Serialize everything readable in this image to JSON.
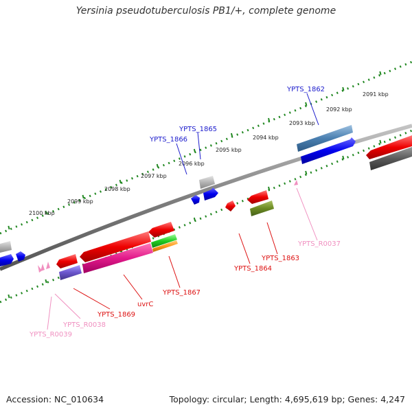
{
  "map": {
    "title": "Yersinia pseudotuberculosis PB1/+, complete genome",
    "accession_text": "Accession: NC_010634",
    "summary_text": "Topology: circular; Length: 4,695,619 bp; Genes: 4,247",
    "ruler_labels": [
      "2091 kbp",
      "2092 kbp",
      "2093 kbp",
      "2094 kbp",
      "2095 kbp",
      "2096 kbp",
      "2097 kbp",
      "2098 kbp",
      "2099 kbp",
      "2100 kbp"
    ],
    "gene_labels": [
      {
        "text": "YPTS_1862",
        "color": "#1a1acc"
      },
      {
        "text": "YPTS_1865",
        "color": "#1a1acc"
      },
      {
        "text": "YPTS_1866",
        "color": "#1a1acc"
      },
      {
        "text": "YPTS_R0037",
        "color": "#f090c0"
      },
      {
        "text": "YPTS_1863",
        "color": "#dd1111"
      },
      {
        "text": "YPTS_1864",
        "color": "#dd1111"
      },
      {
        "text": "YPTS_1867",
        "color": "#dd1111"
      },
      {
        "text": "uvrC",
        "color": "#dd1111"
      },
      {
        "text": "YPTS_1869",
        "color": "#dd1111"
      },
      {
        "text": "YPTS_R0038",
        "color": "#f090c0"
      },
      {
        "text": "YPTS_R0039",
        "color": "#f090c0"
      }
    ],
    "colors": {
      "forward_cds": "#0000ee",
      "reverse_cds": "#ee0000",
      "rna": "#f090c0",
      "backbone": "#888888",
      "ruler": "#228822"
    }
  }
}
